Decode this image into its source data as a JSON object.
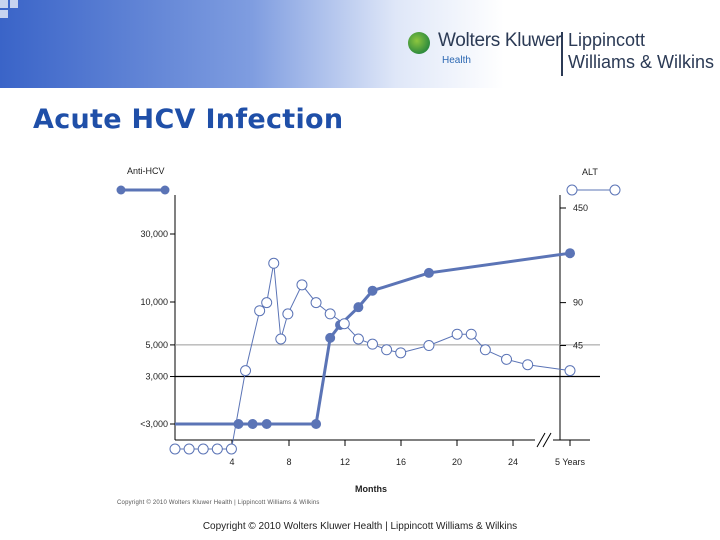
{
  "header": {
    "brand_name": "Wolters Kluwer",
    "brand_sub": "Health",
    "partner_line1": "Lippincott",
    "partner_line2": "Williams & Wilkins"
  },
  "slide": {
    "title": "Acute HCV Infection"
  },
  "footer": {
    "faint_copyright": "Copyright © 2010 Wolters Kluwer Health | Lippincott Williams & Wilkins",
    "copyright": "Copyright © 2010 Wolters Kluwer Health | Lippincott Williams & Wilkins"
  },
  "colors": {
    "series": "#5b74b6",
    "axis": "#000000",
    "grid": "#bdbdbd"
  },
  "chart_data": {
    "type": "line",
    "xlabel": "Months",
    "x_ticks": [
      "4",
      "8",
      "12",
      "16",
      "20",
      "24",
      "5 Years"
    ],
    "x_tick_values": [
      4,
      8,
      12,
      16,
      20,
      24,
      28
    ],
    "xlim": [
      0,
      28
    ],
    "y_left_label": "Anti-HCV",
    "y_left_ticks": [
      "30,000",
      "10,000",
      "5,000",
      "3,000",
      "<3,000"
    ],
    "y_right_label": "ALT",
    "y_right_ticks": [
      "450",
      "90",
      "45"
    ],
    "y_scale": "log",
    "axis_break": "between 24 and 5 Years",
    "reference_lines": [
      "5,000",
      "3,000"
    ],
    "series": [
      {
        "name": "Anti-HCV",
        "marker": "filled",
        "points": [
          [
            0,
            "<3,000"
          ],
          [
            4.5,
            "<3,000"
          ],
          [
            5.5,
            "<3,000"
          ],
          [
            6.5,
            "<3,000"
          ],
          [
            10,
            "<3,000"
          ],
          [
            11,
            5600
          ],
          [
            11.7,
            6900
          ],
          [
            13,
            9200
          ],
          [
            14,
            12000
          ],
          [
            18,
            16000
          ],
          [
            28,
            22000
          ]
        ]
      },
      {
        "name": "ALT",
        "marker": "open",
        "points": [
          [
            0,
            "<45"
          ],
          [
            1,
            "<45"
          ],
          [
            2,
            "<45"
          ],
          [
            3,
            "<45"
          ],
          [
            4,
            "<45"
          ],
          [
            5,
            30
          ],
          [
            6,
            79
          ],
          [
            6.5,
            90
          ],
          [
            7,
            170
          ],
          [
            7.5,
            50
          ],
          [
            8,
            75
          ],
          [
            9,
            120
          ],
          [
            10,
            90
          ],
          [
            11,
            75
          ],
          [
            12,
            64
          ],
          [
            13,
            50
          ],
          [
            14,
            46
          ],
          [
            15,
            42
          ],
          [
            16,
            40
          ],
          [
            18,
            45
          ],
          [
            20,
            54
          ],
          [
            21,
            54
          ],
          [
            22,
            42
          ],
          [
            23.5,
            36
          ],
          [
            25,
            33
          ],
          [
            28,
            30
          ]
        ]
      }
    ]
  }
}
